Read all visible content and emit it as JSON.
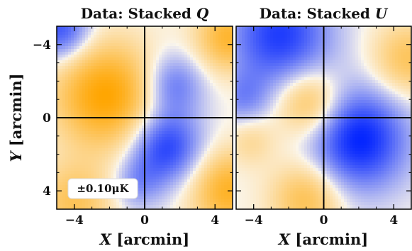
{
  "chart_data": [
    {
      "type": "heatmap",
      "title": {
        "prefix": "Data: Stacked ",
        "symbol": "Q"
      },
      "xlabel": {
        "symbol": "X",
        "unit": "[arcmin]"
      },
      "ylabel": {
        "symbol": "Y",
        "unit": "[arcmin]"
      },
      "xlim": [
        -5,
        5
      ],
      "ylim": [
        -5,
        5
      ],
      "xticks": [
        -4,
        0,
        4
      ],
      "yticks": [
        -4,
        0,
        4
      ],
      "xtick_labels": [
        "−4",
        "0",
        "4"
      ],
      "ytick_labels": [
        "4",
        "0",
        "−4"
      ],
      "colorscale_annotation": "±0.10μK",
      "color_limits": [
        -0.1,
        0.1
      ],
      "colormap": {
        "negative": "#0022ff",
        "zero": "#fbf6ec",
        "positive": "#ffa500"
      },
      "crosshair": true,
      "field_components": [
        {
          "x": -2.2,
          "y": 1.2,
          "sigma": 2.0,
          "amplitude": 1.0
        },
        {
          "x": 1.2,
          "y": -1.6,
          "sigma": 1.4,
          "amplitude": -0.85
        },
        {
          "x": 1.6,
          "y": 1.8,
          "sigma": 1.2,
          "amplitude": -0.55
        },
        {
          "x": -4.8,
          "y": 4.8,
          "sigma": 1.2,
          "amplitude": -0.75
        },
        {
          "x": 4.8,
          "y": 4.4,
          "sigma": 1.3,
          "amplitude": 0.75
        },
        {
          "x": 4.8,
          "y": -4.0,
          "sigma": 1.5,
          "amplitude": 0.8
        },
        {
          "x": -4.0,
          "y": -4.6,
          "sigma": 1.5,
          "amplitude": 0.55
        },
        {
          "x": -0.4,
          "y": -3.6,
          "sigma": 1.0,
          "amplitude": -0.35
        }
      ]
    },
    {
      "type": "heatmap",
      "title": {
        "prefix": "Data: Stacked ",
        "symbol": "U"
      },
      "xlabel": {
        "symbol": "X",
        "unit": "[arcmin]"
      },
      "xlim": [
        -5,
        5
      ],
      "ylim": [
        -5,
        5
      ],
      "xticks": [
        -4,
        0,
        4
      ],
      "xtick_labels": [
        "−4",
        "0",
        "4"
      ],
      "color_limits": [
        -0.1,
        0.1
      ],
      "colormap": {
        "negative": "#0022ff",
        "zero": "#fbf6ec",
        "positive": "#ffa500"
      },
      "crosshair": true,
      "field_components": [
        {
          "x": 2.0,
          "y": -1.2,
          "sigma": 1.9,
          "amplitude": -1.0
        },
        {
          "x": -2.5,
          "y": 4.5,
          "sigma": 2.0,
          "amplitude": -0.85
        },
        {
          "x": -0.8,
          "y": 0.8,
          "sigma": 1.3,
          "amplitude": 0.65
        },
        {
          "x": 4.8,
          "y": 3.2,
          "sigma": 1.4,
          "amplitude": 0.55
        },
        {
          "x": -1.0,
          "y": -4.4,
          "sigma": 1.4,
          "amplitude": 0.6
        },
        {
          "x": -4.6,
          "y": 1.0,
          "sigma": 1.1,
          "amplitude": -0.4
        },
        {
          "x": -4.2,
          "y": -1.2,
          "sigma": 1.0,
          "amplitude": 0.3
        }
      ]
    }
  ]
}
